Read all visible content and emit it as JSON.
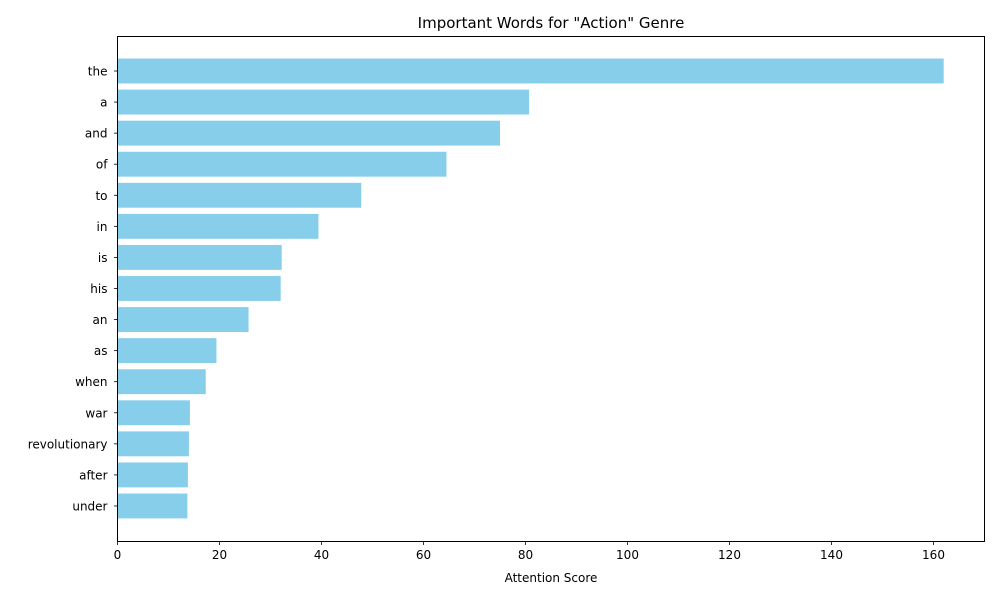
{
  "chart_data": {
    "type": "bar",
    "orientation": "horizontal",
    "title": "Important Words for \"Action\" Genre",
    "xlabel": "Attention Score",
    "ylabel": "",
    "xlim": [
      0,
      170
    ],
    "xticks": [
      0,
      20,
      40,
      60,
      80,
      100,
      120,
      140,
      160
    ],
    "grid": false,
    "legend": "none",
    "bar_color": "#87CEEB",
    "categories": [
      "the",
      "a",
      "and",
      "of",
      "to",
      "in",
      "is",
      "his",
      "an",
      "as",
      "when",
      "war",
      "revolutionary",
      "after",
      "under"
    ],
    "values": [
      162,
      80.7,
      75,
      64.5,
      47.8,
      39.4,
      32.2,
      32.0,
      25.7,
      19.4,
      17.3,
      14.2,
      14.0,
      13.8,
      13.7
    ]
  }
}
